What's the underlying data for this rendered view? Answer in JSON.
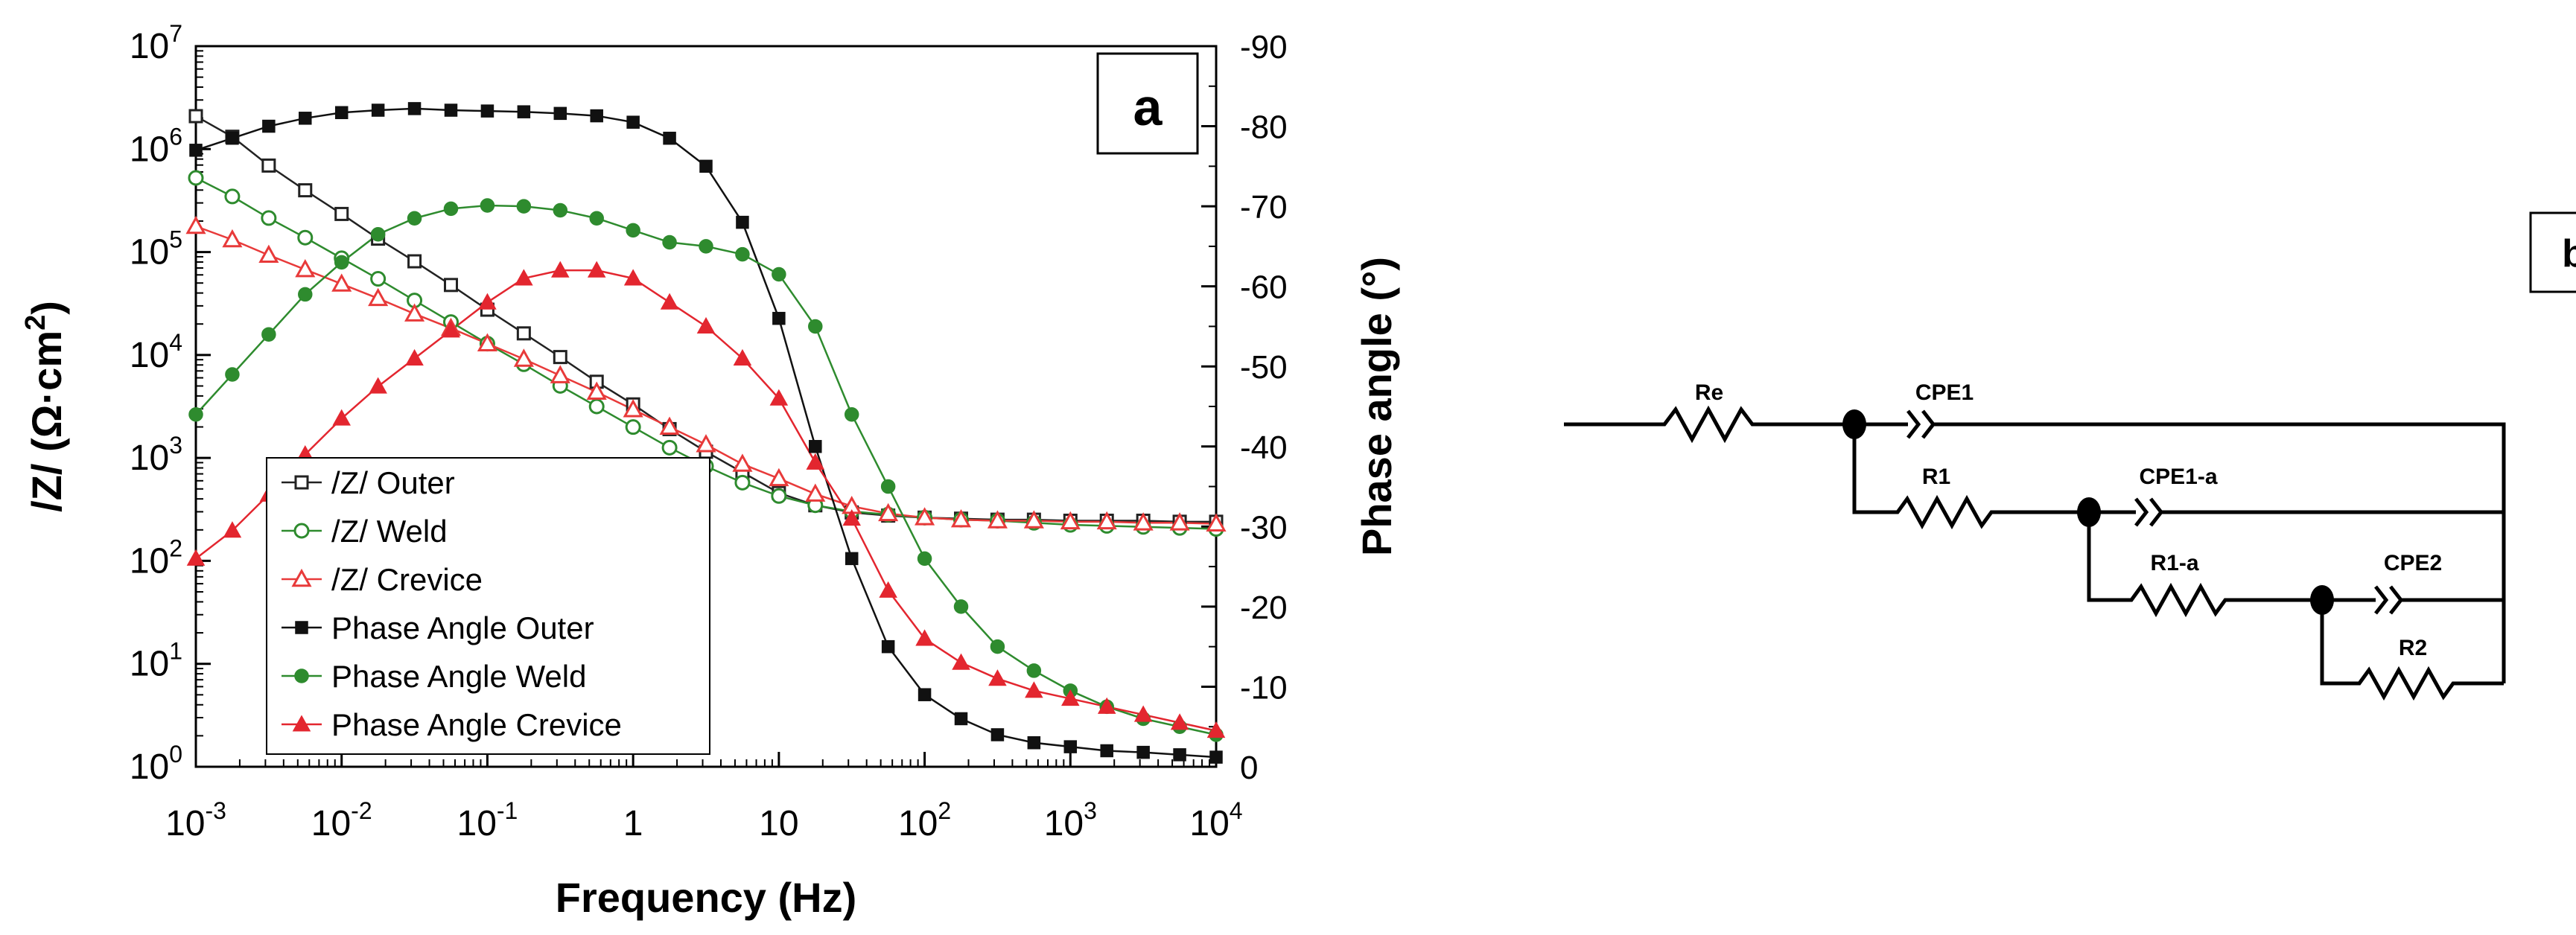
{
  "panel_a": {
    "panel_label": "a",
    "title": "",
    "xlabel": "Frequency (Hz)",
    "ylabel_left_main": "/Z/ (Ω·cm",
    "ylabel_left_sup": "2",
    "ylabel_left_end": ")",
    "ylabel_right": "Phase angle (°)",
    "x_ticks": [
      {
        "base": "10",
        "exp": "-3",
        "value": -3
      },
      {
        "base": "10",
        "exp": "-2",
        "value": -2
      },
      {
        "base": "10",
        "exp": "-1",
        "value": -1
      },
      {
        "base": "1",
        "exp": "",
        "value": 0
      },
      {
        "base": "10",
        "exp": "",
        "value": 1
      },
      {
        "base": "10",
        "exp": "2",
        "value": 2
      },
      {
        "base": "10",
        "exp": "3",
        "value": 3
      },
      {
        "base": "10",
        "exp": "4",
        "value": 4
      }
    ],
    "y_left_ticks": [
      {
        "base": "10",
        "exp": "0",
        "value": 0
      },
      {
        "base": "10",
        "exp": "1",
        "value": 1
      },
      {
        "base": "10",
        "exp": "2",
        "value": 2
      },
      {
        "base": "10",
        "exp": "3",
        "value": 3
      },
      {
        "base": "10",
        "exp": "4",
        "value": 4
      },
      {
        "base": "10",
        "exp": "5",
        "value": 5
      },
      {
        "base": "10",
        "exp": "6",
        "value": 6
      },
      {
        "base": "10",
        "exp": "7",
        "value": 7
      }
    ],
    "y_right_ticks": [
      {
        "label": "0",
        "value": 0
      },
      {
        "label": "-10",
        "value": -10
      },
      {
        "label": "-20",
        "value": -20
      },
      {
        "label": "-30",
        "value": -30
      },
      {
        "label": "-40",
        "value": -40
      },
      {
        "label": "-50",
        "value": -50
      },
      {
        "label": "-60",
        "value": -60
      },
      {
        "label": "-70",
        "value": -70
      },
      {
        "label": "-80",
        "value": -80
      },
      {
        "label": "-90",
        "value": -90
      }
    ]
  },
  "chart_data": {
    "type": "line",
    "title": "",
    "xlabel": "Frequency (Hz)",
    "ylabel": "/Z/ (Ω·cm2)",
    "ylabel_right": "Phase angle (°)",
    "x_scale": "log",
    "xlim": [
      0.001,
      10000
    ],
    "y_scale": "log",
    "ylim": [
      1,
      10000000
    ],
    "y_right_lim": [
      0,
      -90
    ],
    "grid": false,
    "legend_position": "bottom-left",
    "x_log10": [
      -3,
      -2.75,
      -2.5,
      -2.25,
      -2,
      -1.75,
      -1.5,
      -1.25,
      -1,
      -0.75,
      -0.5,
      -0.25,
      0,
      0.25,
      0.5,
      0.75,
      1,
      1.25,
      1.5,
      1.75,
      2,
      2.25,
      2.5,
      2.75,
      3,
      3.25,
      3.5,
      3.75,
      4
    ],
    "series": [
      {
        "name": "/Z/ Outer",
        "axis": "left",
        "marker": "square-open",
        "color": "#222222",
        "log10_values": [
          6.32,
          6.12,
          5.84,
          5.6,
          5.37,
          5.13,
          4.91,
          4.68,
          4.44,
          4.21,
          3.98,
          3.74,
          3.52,
          3.28,
          3.06,
          2.86,
          2.66,
          2.54,
          2.47,
          2.44,
          2.42,
          2.41,
          2.4,
          2.4,
          2.39,
          2.39,
          2.39,
          2.38,
          2.38
        ]
      },
      {
        "name": "/Z/ Weld",
        "axis": "left",
        "marker": "circle-open",
        "color": "#2e8b2e",
        "log10_values": [
          5.72,
          5.54,
          5.33,
          5.14,
          4.94,
          4.74,
          4.53,
          4.32,
          4.11,
          3.91,
          3.7,
          3.5,
          3.3,
          3.1,
          2.92,
          2.76,
          2.63,
          2.54,
          2.48,
          2.45,
          2.42,
          2.4,
          2.39,
          2.37,
          2.35,
          2.34,
          2.33,
          2.32,
          2.31
        ]
      },
      {
        "name": "/Z/ Crevice",
        "axis": "left",
        "marker": "triangle-open",
        "color": "#e83a3a",
        "log10_values": [
          5.25,
          5.12,
          4.97,
          4.83,
          4.69,
          4.55,
          4.4,
          4.26,
          4.11,
          3.96,
          3.8,
          3.64,
          3.47,
          3.3,
          3.13,
          2.94,
          2.8,
          2.65,
          2.53,
          2.46,
          2.42,
          2.4,
          2.39,
          2.39,
          2.38,
          2.38,
          2.37,
          2.37,
          2.36
        ]
      },
      {
        "name": "Phase Angle Outer",
        "axis": "right",
        "marker": "square-filled",
        "color": "#111111",
        "values": [
          -77,
          -78.5,
          -80,
          -81,
          -81.7,
          -82,
          -82.2,
          -82,
          -81.9,
          -81.8,
          -81.6,
          -81.3,
          -80.5,
          -78.5,
          -75,
          -68,
          -56,
          -40,
          -26,
          -15,
          -9,
          -6,
          -4,
          -3,
          -2.5,
          -2,
          -1.8,
          -1.5,
          -1.2
        ]
      },
      {
        "name": "Phase Angle Weld",
        "axis": "right",
        "marker": "circle-filled",
        "color": "#2e8b2e",
        "values": [
          -44,
          -49,
          -54,
          -59,
          -63,
          -66.5,
          -68.5,
          -69.7,
          -70.1,
          -70,
          -69.5,
          -68.5,
          -67,
          -65.5,
          -65,
          -64,
          -61.5,
          -55,
          -44,
          -35,
          -26,
          -20,
          -15,
          -12,
          -9.5,
          -7.5,
          -6,
          -5,
          -4
        ]
      },
      {
        "name": "Phase Angle Crevice",
        "axis": "right",
        "marker": "triangle-filled",
        "color": "#e3262f",
        "values": [
          -26,
          -29.5,
          -34,
          -39,
          -43.5,
          -47.5,
          -51,
          -54.5,
          -58,
          -61,
          -62,
          -62,
          -61,
          -58,
          -55,
          -51,
          -46,
          -38,
          -31,
          -22,
          -16,
          -13,
          -11,
          -9.5,
          -8.5,
          -7.5,
          -6.5,
          -5.5,
          -4.5
        ]
      }
    ]
  },
  "panel_b": {
    "panel_label": "b",
    "title": "",
    "components": {
      "re": "Re",
      "cpe1": "CPE1",
      "r1": "R1",
      "cpe1a": "CPE1-a",
      "r1a": "R1-a",
      "cpe2": "CPE2",
      "r2": "R2"
    }
  }
}
